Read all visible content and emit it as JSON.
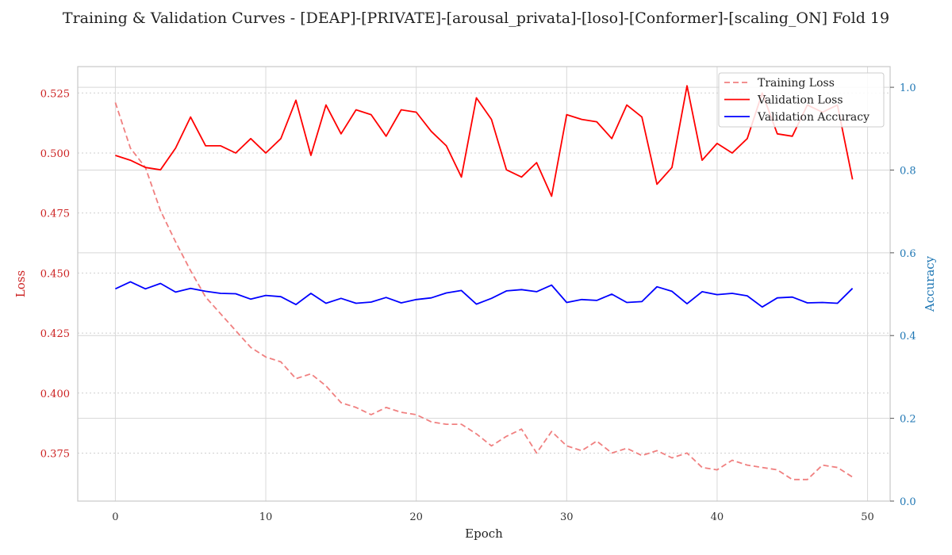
{
  "chart_data": {
    "type": "line",
    "title": "Training & Validation Curves - [DEAP]-[PRIVATE]-[arousal_privata]-[loso]-[Conformer]-[scaling_ON] Fold 19",
    "xlabel": "Epoch",
    "ylabel": "Loss",
    "ylabel_right": "Accuracy",
    "xlim": [
      -2.5,
      51.5
    ],
    "ylim": [
      0.355,
      0.536
    ],
    "ylim_right": [
      0.0,
      1.05
    ],
    "xticks": [
      0,
      10,
      20,
      30,
      40,
      50
    ],
    "yticks": [
      0.375,
      0.4,
      0.425,
      0.45,
      0.475,
      0.5,
      0.525
    ],
    "yticks_right": [
      0.0,
      0.2,
      0.4,
      0.6,
      0.8,
      1.0
    ],
    "ytick_labels": [
      "0.375",
      "0.400",
      "0.425",
      "0.450",
      "0.475",
      "0.500",
      "0.525"
    ],
    "ytick_labels_right": [
      "0.0",
      "0.2",
      "0.4",
      "0.6",
      "0.8",
      "1.0"
    ],
    "grid": true,
    "legend_position": "top-right",
    "colors": {
      "training_loss": "#f08080",
      "validation_loss": "#ff0000",
      "validation_accuracy": "#0000ff",
      "left_axis": "#cc2222",
      "right_axis": "#1f77b4"
    },
    "x": [
      0,
      1,
      2,
      3,
      4,
      5,
      6,
      7,
      8,
      9,
      10,
      11,
      12,
      13,
      14,
      15,
      16,
      17,
      18,
      19,
      20,
      21,
      22,
      23,
      24,
      25,
      26,
      27,
      28,
      29,
      30,
      31,
      32,
      33,
      34,
      35,
      36,
      37,
      38,
      39,
      40,
      41,
      42,
      43,
      44,
      45,
      46,
      47,
      48,
      49
    ],
    "series": [
      {
        "name": "Training Loss",
        "axis": "left",
        "style": "dashed",
        "values": [
          0.521,
          0.502,
          0.494,
          0.476,
          0.463,
          0.451,
          0.44,
          0.433,
          0.426,
          0.419,
          0.415,
          0.413,
          0.406,
          0.408,
          0.403,
          0.396,
          0.394,
          0.391,
          0.394,
          0.392,
          0.391,
          0.388,
          0.387,
          0.387,
          0.383,
          0.378,
          0.382,
          0.385,
          0.375,
          0.384,
          0.378,
          0.376,
          0.38,
          0.375,
          0.377,
          0.374,
          0.376,
          0.373,
          0.375,
          0.369,
          0.368,
          0.372,
          0.37,
          0.369,
          0.368,
          0.364,
          0.364,
          0.37,
          0.369,
          0.365
        ]
      },
      {
        "name": "Validation Loss",
        "axis": "left",
        "style": "solid",
        "values": [
          0.499,
          0.497,
          0.494,
          0.493,
          0.502,
          0.515,
          0.503,
          0.503,
          0.5,
          0.506,
          0.5,
          0.506,
          0.522,
          0.499,
          0.52,
          0.508,
          0.518,
          0.516,
          0.507,
          0.518,
          0.517,
          0.509,
          0.503,
          0.49,
          0.523,
          0.514,
          0.493,
          0.49,
          0.496,
          0.482,
          0.516,
          0.514,
          0.513,
          0.506,
          0.52,
          0.515,
          0.487,
          0.494,
          0.528,
          0.497,
          0.504,
          0.5,
          0.506,
          0.525,
          0.508,
          0.507,
          0.52,
          0.517,
          0.52,
          0.489
        ]
      },
      {
        "name": "Validation Accuracy",
        "axis": "right",
        "style": "solid",
        "values": [
          0.513,
          0.53,
          0.513,
          0.526,
          0.505,
          0.514,
          0.507,
          0.502,
          0.501,
          0.488,
          0.497,
          0.494,
          0.475,
          0.502,
          0.478,
          0.49,
          0.478,
          0.481,
          0.492,
          0.479,
          0.487,
          0.491,
          0.503,
          0.509,
          0.476,
          0.49,
          0.508,
          0.511,
          0.506,
          0.522,
          0.48,
          0.487,
          0.485,
          0.5,
          0.48,
          0.482,
          0.518,
          0.507,
          0.477,
          0.506,
          0.499,
          0.502,
          0.496,
          0.469,
          0.491,
          0.493,
          0.479,
          0.48,
          0.478,
          0.514
        ]
      }
    ]
  }
}
